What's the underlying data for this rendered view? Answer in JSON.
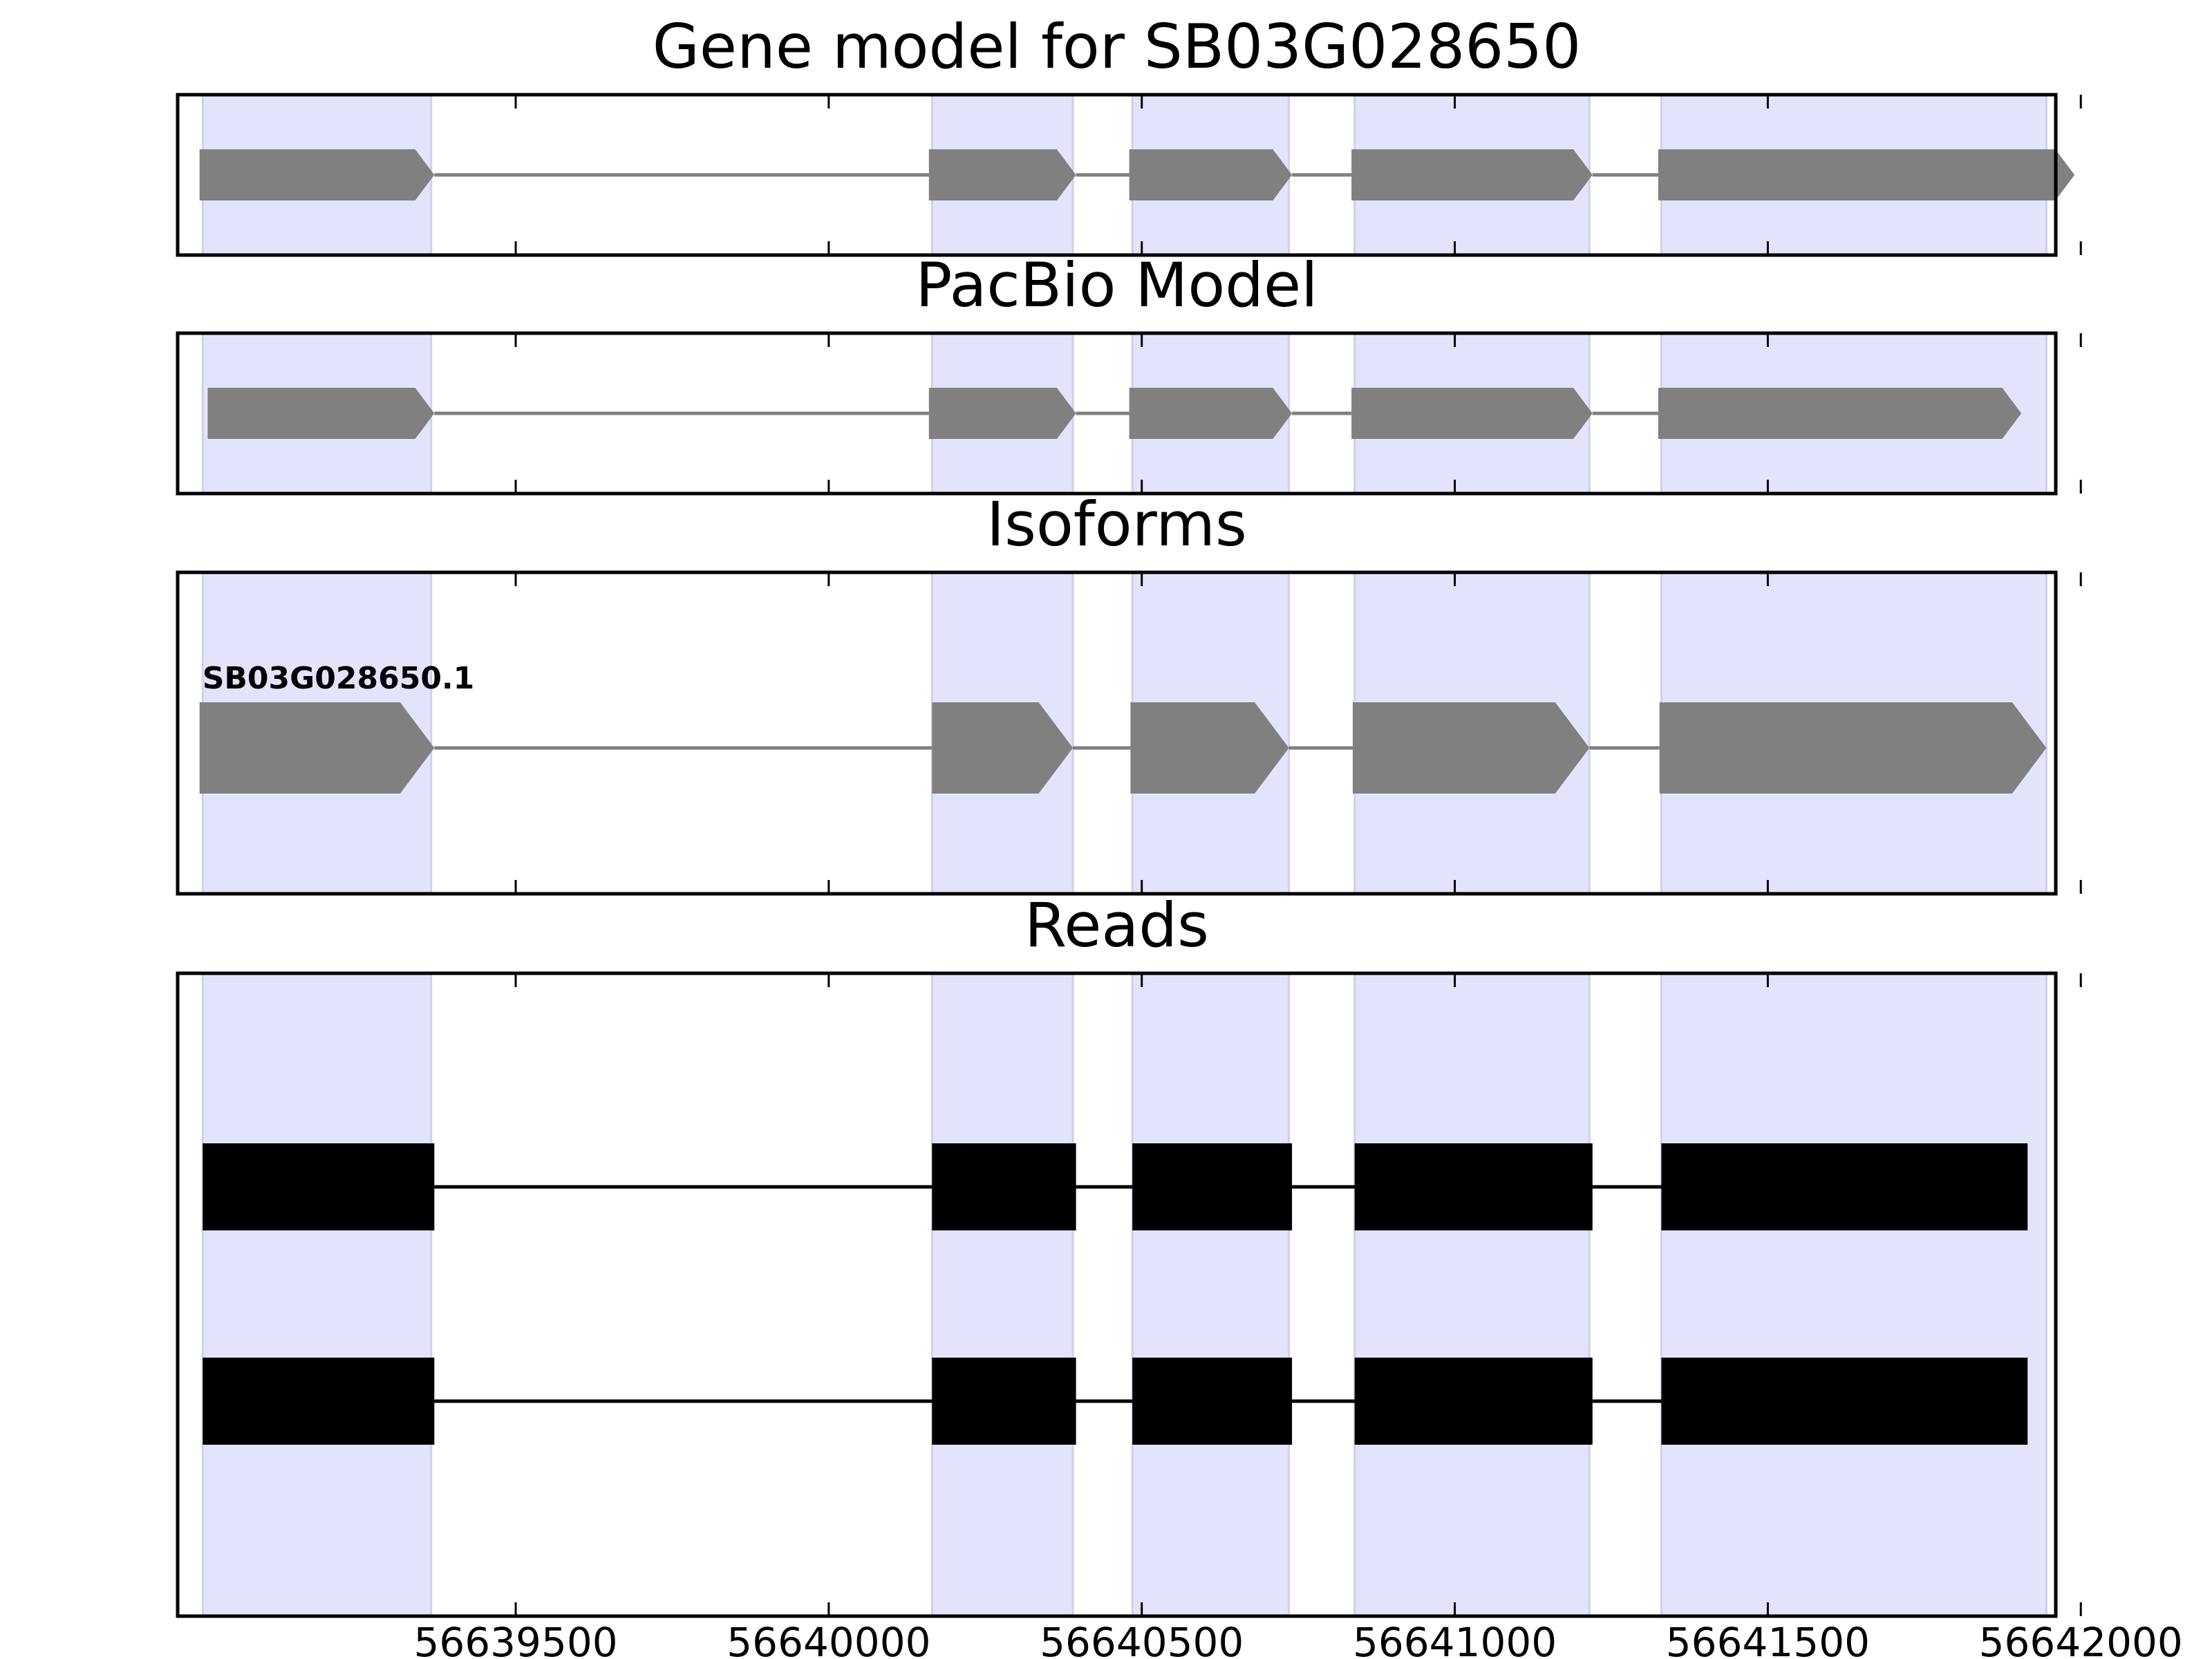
{
  "chart_data": {
    "type": "gene-structure",
    "x_ticks": [
      56639500,
      56640000,
      56640500,
      56641000,
      56641500,
      56642000
    ],
    "x_tick_labels": [
      "56639500",
      "56640000",
      "56640500",
      "56641000",
      "56641500",
      "56642000"
    ],
    "x_range": [
      56638960,
      56641960
    ],
    "exon_regions": [
      [
        56639000,
        56639365
      ],
      [
        56640165,
        56640390
      ],
      [
        56640485,
        56640735
      ],
      [
        56640840,
        56641215
      ],
      [
        56641330,
        56641945
      ]
    ],
    "colors": {
      "region_fill": "#e3e3fc",
      "region_edge": "#d0d0ec",
      "model_exon": "#808080",
      "intron_line": "#808080",
      "read_exon": "#000000",
      "axes": "#000000"
    },
    "panels": [
      {
        "title": "Gene model for SB03G028650",
        "tracks": [
          {
            "label": "",
            "style": "arrow",
            "exons": [
              [
                56638995,
                56639370
              ],
              [
                56640160,
                56640395
              ],
              [
                56640480,
                56640740
              ],
              [
                56640835,
                56641220
              ],
              [
                56641325,
                56641990
              ]
            ]
          }
        ]
      },
      {
        "title": "PacBio Model",
        "tracks": [
          {
            "label": "",
            "style": "arrow",
            "exons": [
              [
                56639008,
                56639370
              ],
              [
                56640160,
                56640395
              ],
              [
                56640480,
                56640740
              ],
              [
                56640835,
                56641220
              ],
              [
                56641325,
                56641905
              ]
            ]
          }
        ]
      },
      {
        "title": "Isoforms",
        "tracks": [
          {
            "label": "SB03G028650.1",
            "style": "arrow",
            "exons": [
              [
                56638995,
                56639370
              ],
              [
                56640165,
                56640390
              ],
              [
                56640482,
                56640735
              ],
              [
                56640837,
                56641215
              ],
              [
                56641327,
                56641945
              ]
            ]
          }
        ]
      },
      {
        "title": "Reads",
        "tracks": [
          {
            "label": "",
            "style": "box",
            "exons": [
              [
                56639000,
                56639370
              ],
              [
                56640165,
                56640395
              ],
              [
                56640485,
                56640740
              ],
              [
                56640840,
                56641220
              ],
              [
                56641330,
                56641915
              ]
            ]
          },
          {
            "label": "",
            "style": "box",
            "exons": [
              [
                56639000,
                56639370
              ],
              [
                56640165,
                56640395
              ],
              [
                56640485,
                56640740
              ],
              [
                56640840,
                56641220
              ],
              [
                56641330,
                56641915
              ]
            ]
          }
        ]
      }
    ]
  }
}
